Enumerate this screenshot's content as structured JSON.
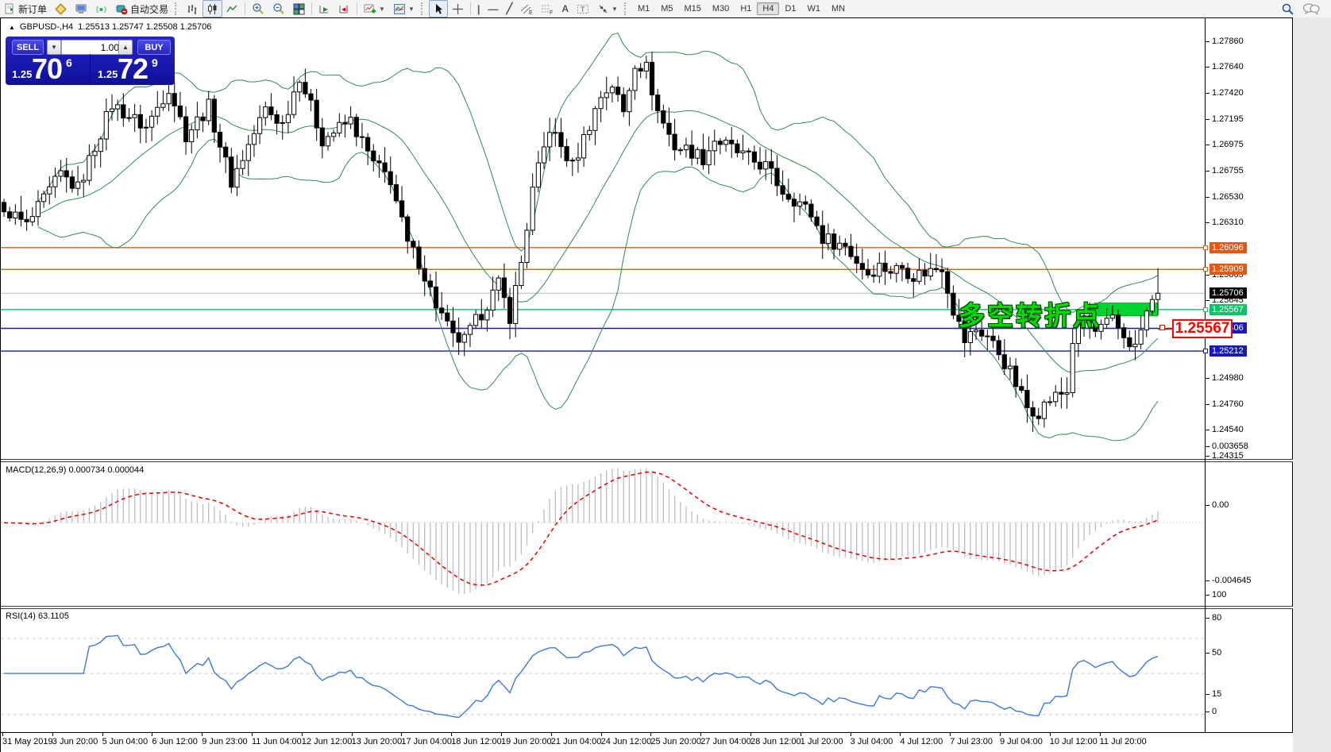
{
  "toolbar": {
    "new_order_label": "新订单",
    "autotrading_label": "自动交易",
    "timeframes": [
      "M1",
      "M5",
      "M15",
      "M30",
      "H1",
      "H4",
      "D1",
      "W1",
      "MN"
    ],
    "active_timeframe": "H4"
  },
  "trade_panel": {
    "sell_label": "SELL",
    "buy_label": "BUY",
    "volume": "1.00",
    "sell_price_small": "1.25",
    "sell_price_big": "70",
    "sell_price_sup": "6",
    "buy_price_small": "1.25",
    "buy_price_big": "72",
    "buy_price_sup": "9"
  },
  "chart_header": {
    "collapse_glyph": "▲",
    "symbol": "GBPUSD-,H4",
    "ohlc": "1.25513 1.25747 1.25508 1.25706"
  },
  "indicator_labels": {
    "macd": "MACD(12,26,9) 0.000734 0.000044",
    "rsi": "RSI(14) 63.1105"
  },
  "annotations": {
    "turning_point_text": "多空转折点",
    "price_callout": "1.25567"
  },
  "colors": {
    "bollinger": "#2e8b57",
    "candle_up_fill": "#ffffff",
    "candle_down_fill": "#000000",
    "candle_stroke": "#000000",
    "bid_line": "#b4b4b4",
    "orange_line": "#e8570e",
    "green_line": "#00c864",
    "blue_line": "#1616cc",
    "highlight_rect": "#00d42e",
    "macd_hist": "#bdbdbd",
    "macd_signal": "#e60000",
    "rsi_line": "#3c78dc",
    "rsi_levels": "#c8c8c8",
    "callout_red": "#ff0000",
    "annotation_green": "#00dc00"
  },
  "chart_data": {
    "type": "candlestick",
    "symbol": "GBPUSD-",
    "timeframe": "H4",
    "ohlc_display": {
      "open": 1.25513,
      "high": 1.25747,
      "low": 1.25508,
      "close": 1.25706
    },
    "bid": 1.25706,
    "ask": 1.25729,
    "n_bars": 204,
    "main": {
      "ylim": [
        1.2429,
        1.28055
      ],
      "ticks": [
        "1.27860",
        "1.27640",
        "1.27420",
        "1.27195",
        "1.26975",
        "1.26755",
        "1.26530",
        "1.26310",
        "1.25865",
        "1.25645",
        "1.24980",
        "1.24760",
        "1.24540",
        "1.24315"
      ],
      "hlines": [
        {
          "price": 1.26096,
          "label": "1.26096",
          "color": "#e8570e",
          "kind": "resistance"
        },
        {
          "price": 1.25909,
          "label": "1.25909",
          "color": "#e8570e",
          "kind": "resistance"
        },
        {
          "price": 1.25706,
          "label": "1.25706",
          "color": "#b4b4b4",
          "label_bg": "#000000",
          "kind": "bid"
        },
        {
          "price": 1.25567,
          "label": "1.25567",
          "color": "#00c864",
          "kind": "pivot"
        },
        {
          "price": 1.25406,
          "label": "1.25406",
          "color": "#1616cc",
          "kind": "support"
        },
        {
          "price": 1.25212,
          "label": "1.25212",
          "color": "#1616cc",
          "kind": "support"
        }
      ],
      "price_path": [
        [
          0,
          1.2636
        ],
        [
          1,
          1.264
        ],
        [
          4,
          1.2628
        ],
        [
          10,
          1.2672
        ],
        [
          13,
          1.266
        ],
        [
          19,
          1.2732
        ],
        [
          25,
          1.2712
        ],
        [
          29,
          1.2747
        ],
        [
          32,
          1.2706
        ],
        [
          36,
          1.273
        ],
        [
          40,
          1.2666
        ],
        [
          46,
          1.2728
        ],
        [
          49,
          1.2715
        ],
        [
          52,
          1.2757
        ],
        [
          56,
          1.2702
        ],
        [
          61,
          1.2718
        ],
        [
          65,
          1.2681
        ],
        [
          68,
          1.2668
        ],
        [
          71,
          1.2612
        ],
        [
          73,
          1.2598
        ],
        [
          76,
          1.2561
        ],
        [
          79,
          1.2532
        ],
        [
          81,
          1.253
        ],
        [
          84,
          1.2554
        ],
        [
          87,
          1.2578
        ],
        [
          89,
          1.2551
        ],
        [
          91,
          1.2597
        ],
        [
          93,
          1.2658
        ],
        [
          96,
          1.2712
        ],
        [
          100,
          1.2679
        ],
        [
          103,
          1.2715
        ],
        [
          105,
          1.2739
        ],
        [
          107,
          1.2749
        ],
        [
          109,
          1.2725
        ],
        [
          111,
          1.2768
        ],
        [
          113,
          1.2763
        ],
        [
          115,
          1.2726
        ],
        [
          118,
          1.2696
        ],
        [
          121,
          1.2692
        ],
        [
          123,
          1.2686
        ],
        [
          125,
          1.2702
        ],
        [
          128,
          1.2694
        ],
        [
          131,
          1.2685
        ],
        [
          134,
          1.2679
        ],
        [
          137,
          1.2658
        ],
        [
          140,
          1.2648
        ],
        [
          142,
          1.2638
        ],
        [
          144,
          1.2618
        ],
        [
          148,
          1.2611
        ],
        [
          150,
          1.2598
        ],
        [
          152,
          1.2588
        ],
        [
          154,
          1.2594
        ],
        [
          156,
          1.259
        ],
        [
          158,
          1.2593
        ],
        [
          160,
          1.2586
        ],
        [
          163,
          1.259
        ],
        [
          165,
          1.2594
        ],
        [
          167,
          1.2557
        ],
        [
          169,
          1.253
        ],
        [
          171,
          1.254
        ],
        [
          173,
          1.2534
        ],
        [
          175,
          1.252
        ],
        [
          177,
          1.2503
        ],
        [
          180,
          1.2473
        ],
        [
          182,
          1.247
        ],
        [
          184,
          1.248
        ],
        [
          187,
          1.2487
        ],
        [
          188,
          1.253
        ],
        [
          190,
          1.2551
        ],
        [
          192,
          1.2537
        ],
        [
          195,
          1.2547
        ],
        [
          197,
          1.2534
        ],
        [
          199,
          1.2524
        ],
        [
          201,
          1.2554
        ],
        [
          203,
          1.25706
        ]
      ],
      "bollinger": {
        "period": 20,
        "deviation": 2
      },
      "highlight_rect": {
        "bar_start": 192.4,
        "bar_end": 203.5,
        "price_top": 1.25622,
        "price_bottom": 1.25512
      }
    },
    "macd": {
      "params": [
        12,
        26,
        9
      ],
      "value": 0.000734,
      "signal": 4.4e-05,
      "ticks": [
        {
          "v": 0.003658,
          "label": "0.003658"
        },
        {
          "v": 0,
          "label": "0.00"
        },
        {
          "v": -0.004645,
          "label": "-0.004645"
        }
      ],
      "vrange": [
        -0.00495,
        0.00395
      ]
    },
    "rsi": {
      "period": 14,
      "value": 63.1105,
      "levels": [
        80,
        50,
        15
      ],
      "ticks": [
        {
          "v": 100,
          "label": "100"
        },
        {
          "v": 80,
          "label": "80"
        },
        {
          "v": 50,
          "label": "50"
        },
        {
          "v": 15,
          "label": "15"
        },
        {
          "v": 0,
          "label": "0"
        }
      ],
      "vrange": [
        0,
        100
      ]
    },
    "x_labels": [
      "31 May 2019",
      "3 Jun 20:00",
      "5 Jun 04:00",
      "6 Jun 12:00",
      "9 Jun 23:00",
      "11 Jun 04:00",
      "12 Jun 12:00",
      "13 Jun 20:00",
      "17 Jun 04:00",
      "18 Jun 12:00",
      "19 Jun 20:00",
      "21 Jun 04:00",
      "24 Jun 12:00",
      "25 Jun 20:00",
      "27 Jun 04:00",
      "28 Jun 12:00",
      "1 Jul 20:00",
      "3 Jul 04:00",
      "4 Jul 12:00",
      "7 Jul 23:00",
      "9 Jul 04:00",
      "10 Jul 12:00",
      "11 Jul 20:00"
    ]
  }
}
